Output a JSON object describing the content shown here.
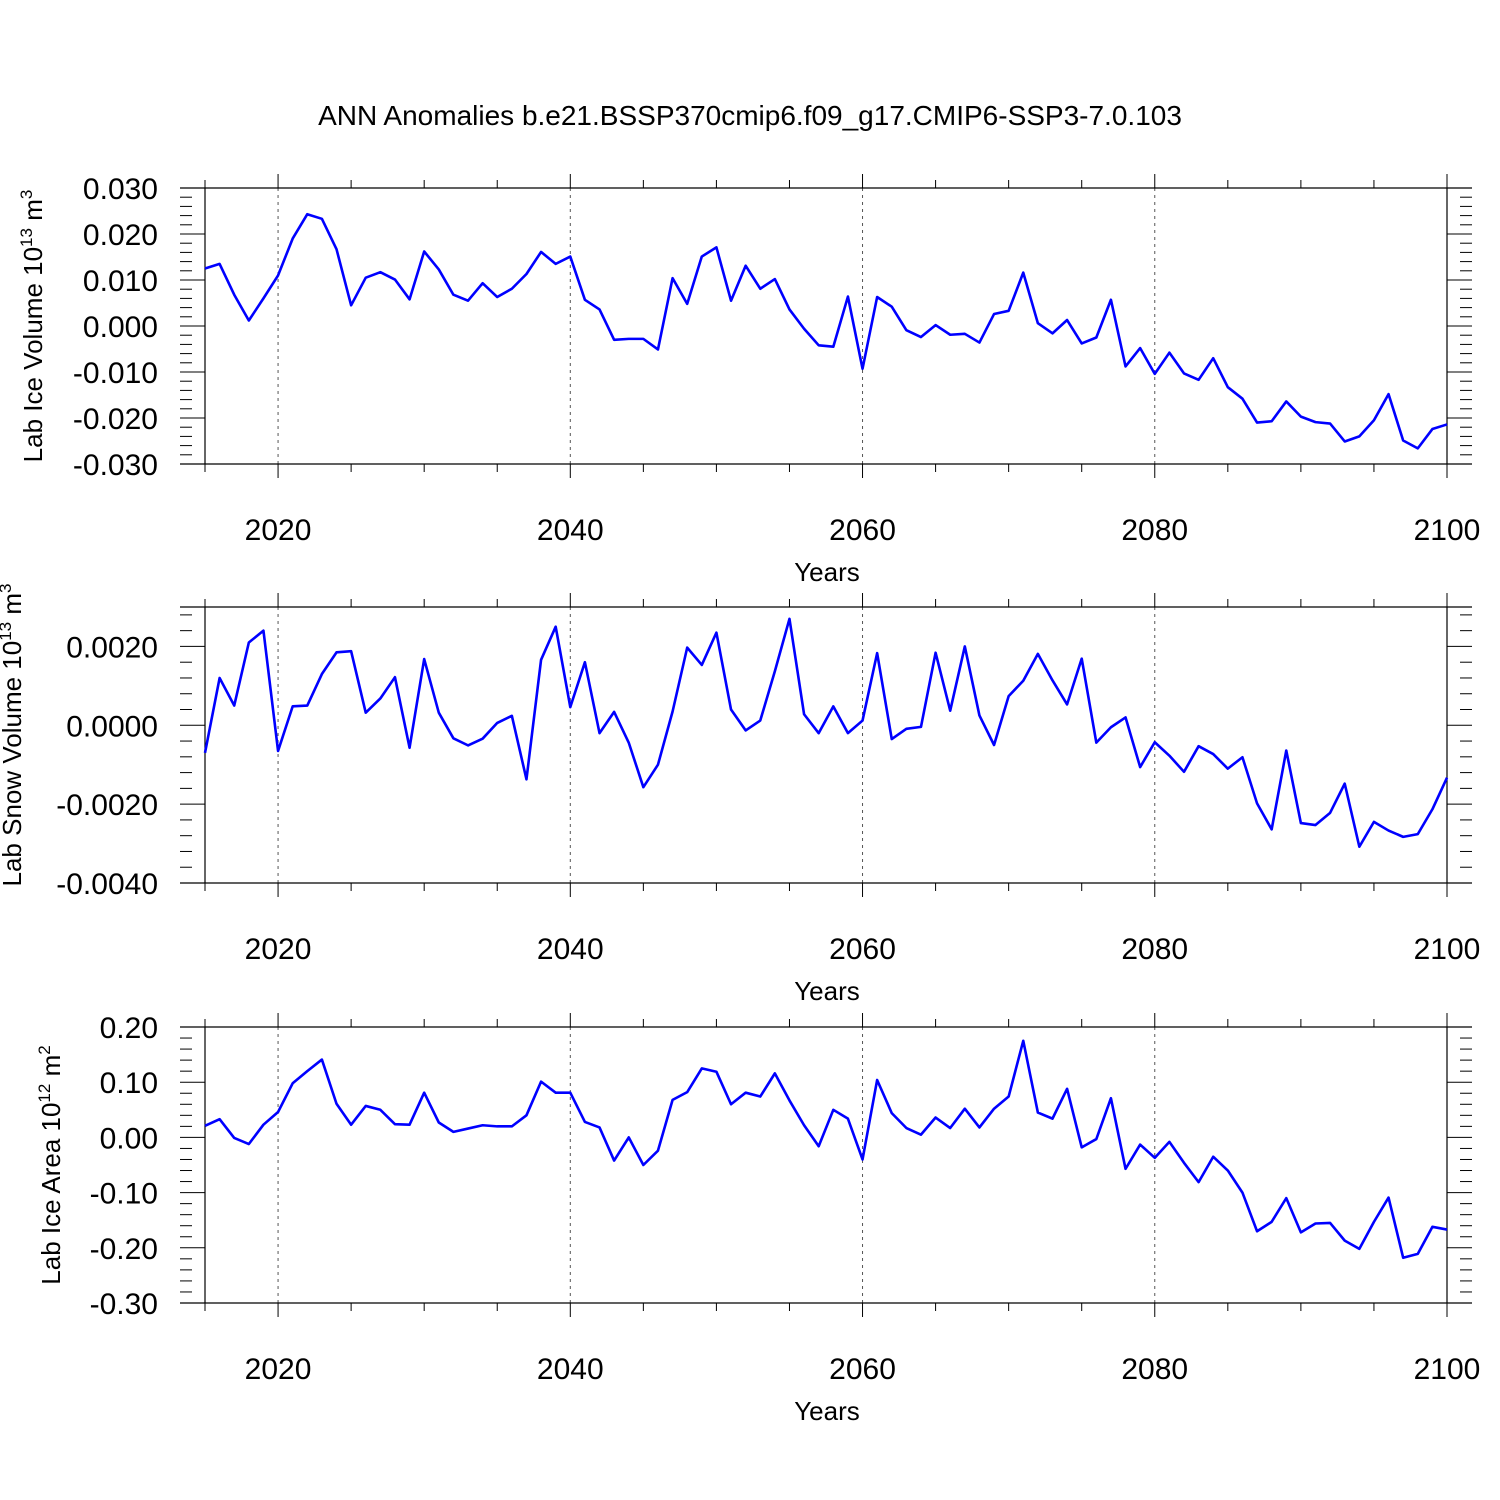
{
  "chart_data": {
    "title": "ANN Anomalies b.e21.BSSP370cmip6.f09_g17.CMIP6-SSP3-7.0.103",
    "panels": [
      {
        "type": "line",
        "ylabel": "Lab Ice Volume 10",
        "ylabel_sup": "13",
        "ylabel_unit": " m",
        "ylabel_unit_sup": "3",
        "xlabel": "Years",
        "xlim": [
          2015,
          2100
        ],
        "ylim": [
          -0.03,
          0.03
        ],
        "yticks": [
          -0.03,
          -0.02,
          -0.01,
          0.0,
          0.01,
          0.02,
          0.03
        ],
        "ytick_labels": [
          "-0.030",
          "-0.020",
          "-0.010",
          "0.000",
          "0.010",
          "0.020",
          "0.030"
        ],
        "xticks": [
          2020,
          2040,
          2060,
          2080,
          2100
        ],
        "xtick_labels": [
          "2020",
          "2040",
          "2060",
          "2080",
          "2100"
        ],
        "grid_x": [
          2020,
          2040,
          2060,
          2080
        ],
        "color": "#0000ff",
        "x_start": 2015,
        "values": [
          0.0125,
          0.0135,
          0.0068,
          0.0012,
          0.006,
          0.011,
          0.019,
          0.0243,
          0.0233,
          0.0167,
          0.0045,
          0.0105,
          0.0117,
          0.0101,
          0.0058,
          0.0162,
          0.0123,
          0.0068,
          0.0055,
          0.0093,
          0.0063,
          0.0081,
          0.0113,
          0.0161,
          0.0135,
          0.0151,
          0.0057,
          0.0036,
          -0.003,
          -0.0028,
          -0.0028,
          -0.0051,
          0.0104,
          0.0048,
          0.0151,
          0.0171,
          0.0055,
          0.0131,
          0.0081,
          0.0102,
          0.0036,
          -0.0006,
          -0.0042,
          -0.0045,
          0.0064,
          -0.0093,
          0.0063,
          0.0042,
          -0.0009,
          -0.0024,
          0.0002,
          -0.0019,
          -0.0017,
          -0.0036,
          0.0026,
          0.0033,
          0.0116,
          0.0006,
          -0.0016,
          0.0013,
          -0.0038,
          -0.0025,
          0.0057,
          -0.0088,
          -0.0048,
          -0.0104,
          -0.0058,
          -0.0103,
          -0.0117,
          -0.007,
          -0.0133,
          -0.0158,
          -0.021,
          -0.0207,
          -0.0164,
          -0.0197,
          -0.0209,
          -0.0212,
          -0.0251,
          -0.024,
          -0.0205,
          -0.0148,
          -0.0249,
          -0.0266,
          -0.0224,
          -0.0214
        ]
      },
      {
        "type": "line",
        "ylabel": "Lab Snow Volume 10",
        "ylabel_sup": "13",
        "ylabel_unit": " m",
        "ylabel_unit_sup": "3",
        "xlabel": "Years",
        "xlim": [
          2015,
          2100
        ],
        "ylim": [
          -0.004,
          0.003
        ],
        "yticks": [
          -0.004,
          -0.002,
          0.0,
          0.002
        ],
        "ytick_labels": [
          "-0.0040",
          "-0.0020",
          "0.0000",
          "0.0020"
        ],
        "xticks": [
          2020,
          2040,
          2060,
          2080,
          2100
        ],
        "xtick_labels": [
          "2020",
          "2040",
          "2060",
          "2080",
          "2100"
        ],
        "grid_x": [
          2020,
          2040,
          2060,
          2080
        ],
        "color": "#0000ff",
        "x_start": 2015,
        "values": [
          -0.0007,
          0.0012,
          0.0005,
          0.0021,
          0.0024,
          -0.00065,
          0.00048,
          0.0005,
          0.0013,
          0.00185,
          0.00188,
          0.00032,
          0.00068,
          0.00122,
          -0.00057,
          0.00168,
          0.00032,
          -0.00033,
          -0.00051,
          -0.00034,
          6e-05,
          0.00024,
          -0.00137,
          0.00166,
          0.0025,
          0.00046,
          0.0016,
          -0.0002,
          0.00034,
          -0.00044,
          -0.00157,
          -0.001,
          0.00035,
          0.00197,
          0.00153,
          0.00235,
          0.0004,
          -0.00013,
          0.00012,
          0.00137,
          0.0027,
          0.00028,
          -0.0002,
          0.00048,
          -0.0002,
          0.00012,
          0.00183,
          -0.00035,
          -9e-05,
          -4e-05,
          0.00184,
          0.00037,
          0.002,
          0.00025,
          -0.0005,
          0.00074,
          0.00113,
          0.00181,
          0.00114,
          0.00053,
          0.00169,
          -0.00044,
          -5e-05,
          0.0002,
          -0.00106,
          -0.00043,
          -0.00077,
          -0.00118,
          -0.00053,
          -0.00073,
          -0.0011,
          -0.00081,
          -0.00198,
          -0.00264,
          -0.00064,
          -0.00248,
          -0.00253,
          -0.00222,
          -0.00148,
          -0.00308,
          -0.00245,
          -0.00267,
          -0.00283,
          -0.00276,
          -0.00213,
          -0.00133
        ]
      },
      {
        "type": "line",
        "ylabel": "Lab Ice Area 10",
        "ylabel_sup": "12",
        "ylabel_unit": " m",
        "ylabel_unit_sup": "2",
        "xlabel": "Years",
        "xlim": [
          2015,
          2100
        ],
        "ylim": [
          -0.3,
          0.2
        ],
        "yticks": [
          -0.3,
          -0.2,
          -0.1,
          0.0,
          0.1,
          0.2
        ],
        "ytick_labels": [
          "-0.30",
          "-0.20",
          "-0.10",
          "0.00",
          "0.10",
          "0.20"
        ],
        "xticks": [
          2020,
          2040,
          2060,
          2080,
          2100
        ],
        "xtick_labels": [
          "2020",
          "2040",
          "2060",
          "2080",
          "2100"
        ],
        "grid_x": [
          2020,
          2040,
          2060,
          2080
        ],
        "color": "#0000ff",
        "x_start": 2015,
        "values": [
          0.021,
          0.033,
          -0.001,
          -0.012,
          0.023,
          0.046,
          0.098,
          0.12,
          0.141,
          0.061,
          0.023,
          0.057,
          0.05,
          0.024,
          0.023,
          0.081,
          0.027,
          0.01,
          0.016,
          0.022,
          0.02,
          0.02,
          0.04,
          0.101,
          0.081,
          0.081,
          0.028,
          0.018,
          -0.042,
          0.0,
          -0.05,
          -0.024,
          0.068,
          0.082,
          0.125,
          0.119,
          0.06,
          0.081,
          0.074,
          0.116,
          0.067,
          0.022,
          -0.016,
          0.05,
          0.034,
          -0.04,
          0.104,
          0.044,
          0.017,
          0.005,
          0.036,
          0.017,
          0.052,
          0.018,
          0.052,
          0.074,
          0.175,
          0.045,
          0.034,
          0.088,
          -0.018,
          -0.003,
          0.071,
          -0.057,
          -0.013,
          -0.037,
          -0.008,
          -0.046,
          -0.081,
          -0.035,
          -0.06,
          -0.1,
          -0.17,
          -0.153,
          -0.11,
          -0.172,
          -0.156,
          -0.155,
          -0.187,
          -0.202,
          -0.153,
          -0.109,
          -0.218,
          -0.211,
          -0.162,
          -0.167
        ]
      }
    ]
  }
}
